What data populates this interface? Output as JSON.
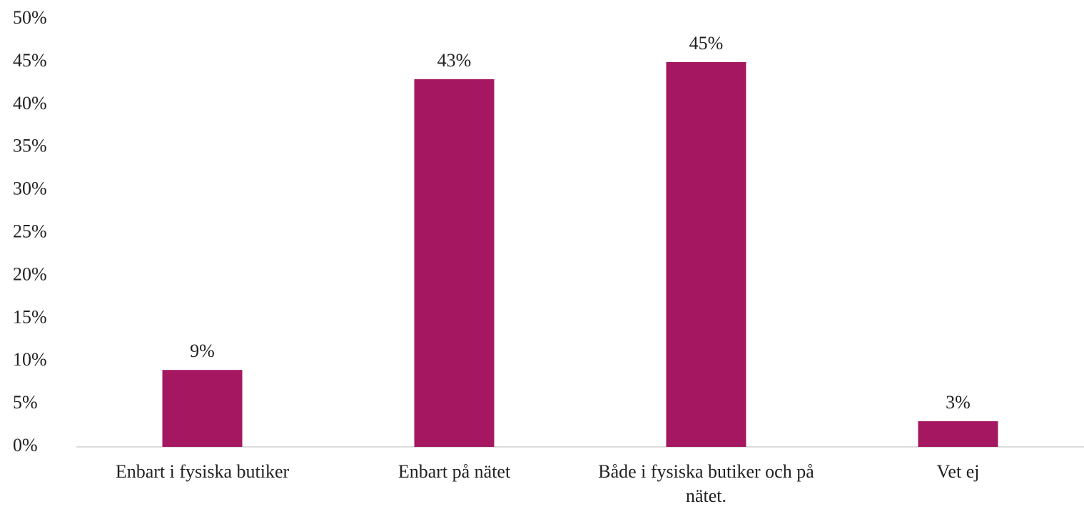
{
  "chart_data": {
    "type": "bar",
    "categories": [
      "Enbart i fysiska butiker",
      "Enbart på nätet",
      "Både i fysiska butiker och på nätet.",
      "Vet ej"
    ],
    "values": [
      9,
      43,
      45,
      3
    ],
    "value_labels": [
      "9%",
      "43%",
      "45%",
      "3%"
    ],
    "color": "#a51761",
    "ylim": [
      0,
      50
    ],
    "yticks": [
      {
        "value": 0,
        "label": "0%"
      },
      {
        "value": 5,
        "label": "5%"
      },
      {
        "value": 10,
        "label": "10%"
      },
      {
        "value": 15,
        "label": "15%"
      },
      {
        "value": 20,
        "label": "20%"
      },
      {
        "value": 25,
        "label": "25%"
      },
      {
        "value": 30,
        "label": "30%"
      },
      {
        "value": 35,
        "label": "35%"
      },
      {
        "value": 40,
        "label": "40%"
      },
      {
        "value": 45,
        "label": "45%"
      },
      {
        "value": 50,
        "label": "50%"
      }
    ],
    "grid": false
  }
}
